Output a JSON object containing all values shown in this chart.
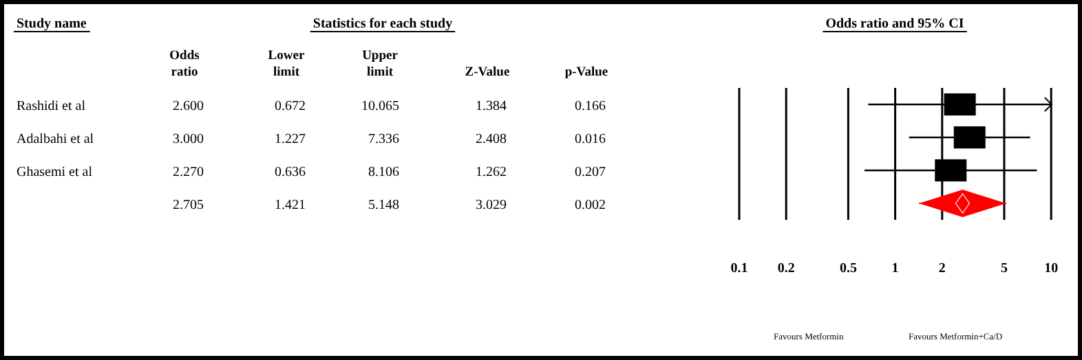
{
  "chart_data": [
    {
      "type": "heatmap",
      "title": "Statistics for each study",
      "ylabel": "Study name",
      "categories": [
        "Odds ratio",
        "Lower limit",
        "Upper limit",
        "Z-Value",
        "p-Value"
      ],
      "y_categories": [
        "Rashidi et al",
        "Adalbahi et al",
        "Ghasemi et al",
        null
      ],
      "cells": [
        [
          2.6,
          0.672,
          10.065,
          1.384,
          0.166
        ],
        [
          3.0,
          1.227,
          7.336,
          2.408,
          0.016
        ],
        [
          2.27,
          0.636,
          8.106,
          1.262,
          0.207
        ],
        [
          2.705,
          1.421,
          5.148,
          3.029,
          0.002
        ]
      ],
      "cell_labels": [
        [
          "2.600",
          "0.672",
          "10.065",
          "1.384",
          "0.166"
        ],
        [
          "3.000",
          "1.227",
          "7.336",
          "2.408",
          "0.016"
        ],
        [
          "2.270",
          "0.636",
          "8.106",
          "1.262",
          "0.207"
        ],
        [
          "2.705",
          "1.421",
          "5.148",
          "3.029",
          "0.002"
        ]
      ]
    },
    {
      "type": "scatter",
      "title": "Odds ratio and 95% CI",
      "categories": [
        null,
        null,
        null,
        null
      ],
      "orientation": "horizontal",
      "series": [
        {
          "color": "#000000",
          "marker": "square",
          "values": [
            2.6,
            3.0,
            2.27,
            null
          ],
          "errors": [
            [
              0.672,
              10.065
            ],
            [
              1.227,
              7.336
            ],
            [
              0.636,
              8.106
            ],
            null
          ]
        },
        {
          "color": "#ff0000",
          "marker": "diamond",
          "values": [
            null,
            null,
            null,
            2.705
          ],
          "errors": [
            null,
            null,
            null,
            [
              1.421,
              5.148
            ]
          ]
        }
      ],
      "log": "x",
      "xlim": [
        0.1,
        10.5
      ],
      "xticks": [
        0.1,
        0.2,
        0.5,
        1,
        2,
        5,
        10
      ],
      "grid": "x",
      "annotations": [
        "Favours Metformin",
        "Favours Metformin+Ca/D"
      ]
    }
  ]
}
